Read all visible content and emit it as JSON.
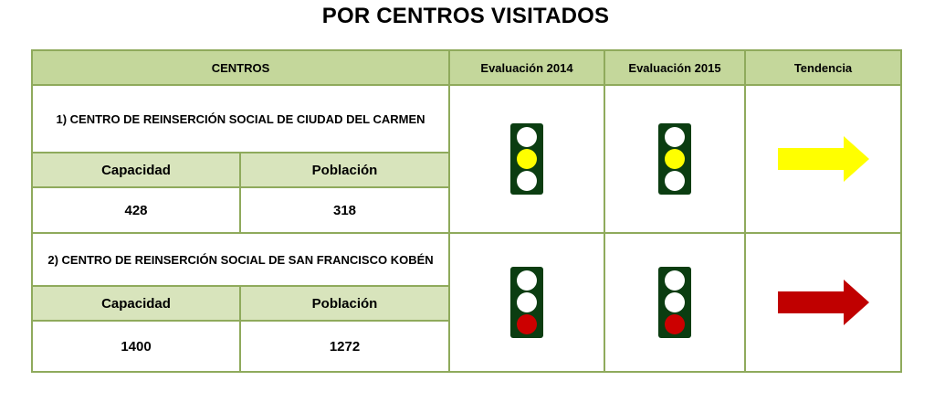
{
  "title": "POR CENTROS VISITADOS",
  "headers": {
    "centros": "CENTROS",
    "eval2014": "Evaluación 2014",
    "eval2015": "Evaluación 2015",
    "tendencia": "Tendencia"
  },
  "colors": {
    "yellow_light": "#ffff00",
    "red_light": "#cc0000",
    "yellow_arrow": "#ffff00",
    "red_arrow": "#c00000"
  },
  "centers": [
    {
      "name": "1) CENTRO DE REINSERCIÓN SOCIAL DE CIUDAD DEL CARMEN",
      "capacidad_label": "Capacidad",
      "poblacion_label": "Población",
      "capacidad": "428",
      "poblacion": "318",
      "eval_2014": "yellow",
      "eval_2015": "yellow",
      "tendencia": "yellow-arrow-icon"
    },
    {
      "name": "2) CENTRO DE REINSERCIÓN SOCIAL DE SAN FRANCISCO KOBÉN",
      "capacidad_label": "Capacidad",
      "poblacion_label": "Población",
      "capacidad": "1400",
      "poblacion": "1272",
      "eval_2014": "red",
      "eval_2015": "red",
      "tendencia": "red-arrow-icon"
    }
  ]
}
